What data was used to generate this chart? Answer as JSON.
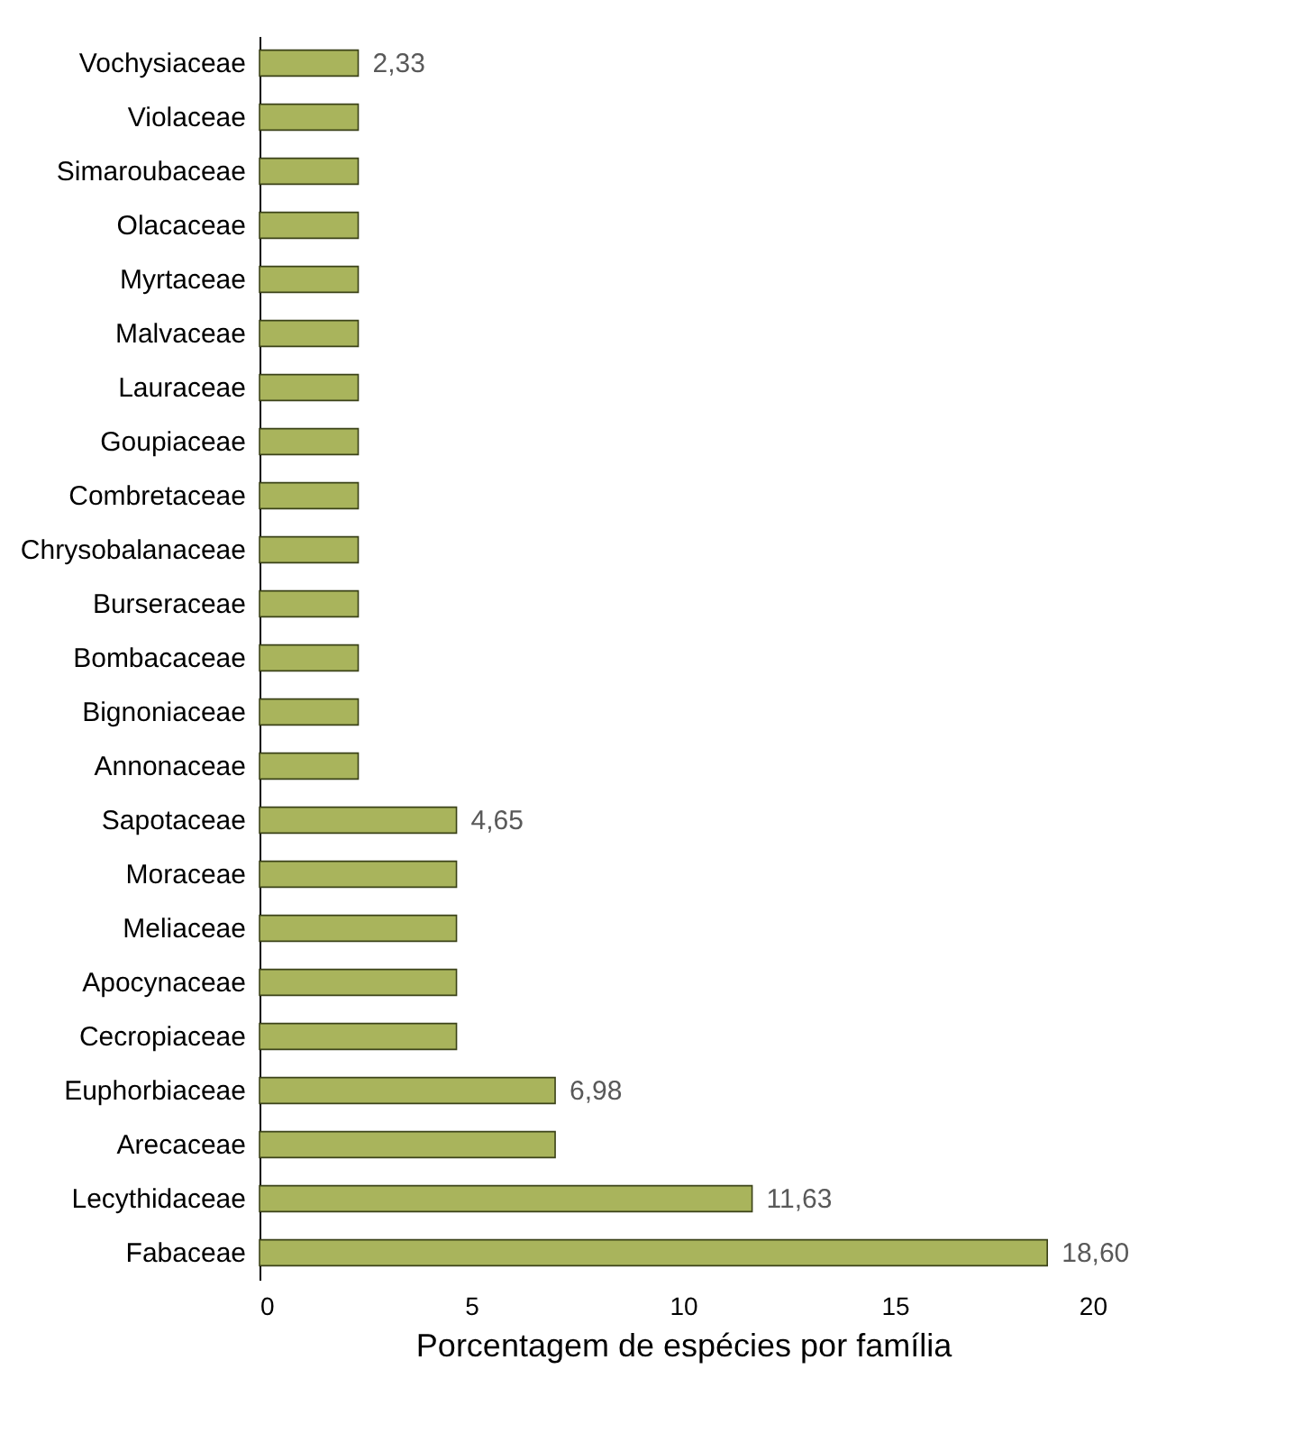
{
  "chart_data": {
    "type": "bar",
    "orientation": "horizontal",
    "xlabel": "Porcentagem de espécies por família",
    "categories": [
      "Vochysiaceae",
      "Violaceae",
      "Simaroubaceae",
      "Olacaceae",
      "Myrtaceae",
      "Malvaceae",
      "Lauraceae",
      "Goupiaceae",
      "Combretaceae",
      "Chrysobalanaceae",
      "Burseraceae",
      "Bombacaceae",
      "Bignoniaceae",
      "Annonaceae",
      "Sapotaceae",
      "Moraceae",
      "Meliaceae",
      "Apocynaceae",
      "Cecropiaceae",
      "Euphorbiaceae",
      "Arecaceae",
      "Lecythidaceae",
      "Fabaceae"
    ],
    "values": [
      2.33,
      2.33,
      2.33,
      2.33,
      2.33,
      2.33,
      2.33,
      2.33,
      2.33,
      2.33,
      2.33,
      2.33,
      2.33,
      2.33,
      4.65,
      4.65,
      4.65,
      4.65,
      4.65,
      6.98,
      6.98,
      11.63,
      18.6
    ],
    "value_labels": [
      "2,33",
      null,
      null,
      null,
      null,
      null,
      null,
      null,
      null,
      null,
      null,
      null,
      null,
      null,
      "4,65",
      null,
      null,
      null,
      null,
      "6,98",
      null,
      "11,63",
      "18,60"
    ],
    "color": "#a9b45c",
    "xlim": [
      0,
      20
    ],
    "xticks": [
      0,
      5,
      10,
      15,
      20
    ],
    "grid": false
  }
}
